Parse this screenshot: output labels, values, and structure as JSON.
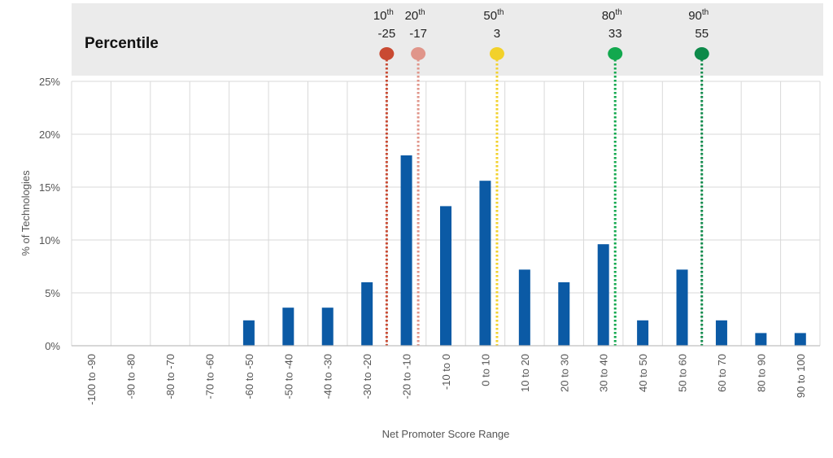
{
  "chart_data": {
    "type": "bar",
    "xlabel": "Net Promoter Score Range",
    "ylabel": "% of Technologies",
    "ylim": [
      0,
      25
    ],
    "yticks": [
      0,
      5,
      10,
      15,
      20,
      25
    ],
    "ytick_labels": [
      "0%",
      "5%",
      "10%",
      "15%",
      "20%",
      "25%"
    ],
    "grid": true,
    "bar_color": "#0b5aa5",
    "categories": [
      "-100 to -90",
      "-90 to -80",
      "-80 to -70",
      "-70 to -60",
      "-60 to -50",
      "-50 to -40",
      "-40 to -30",
      "-30 to -20",
      "-20 to -10",
      "-10 to 0",
      "0 to 10",
      "10 to 20",
      "20 to 30",
      "30 to 40",
      "40 to 50",
      "50 to 60",
      "60 to 70",
      "80 to 90",
      "90 to 100"
    ],
    "values": [
      0,
      0,
      0,
      0,
      2.4,
      3.6,
      3.6,
      6.0,
      18.0,
      13.2,
      15.6,
      7.2,
      6.0,
      9.6,
      2.4,
      7.2,
      2.4,
      1.2,
      1.2
    ],
    "percentile_panel": {
      "title": "Percentile",
      "background": "#ebebeb",
      "markers": [
        {
          "ordinal": "10",
          "suffix": "th",
          "value": "-25",
          "category_position": 7.5,
          "color": "#c94a32"
        },
        {
          "ordinal": "20",
          "suffix": "th",
          "value": "-17",
          "category_position": 8.3,
          "color": "#e0958a"
        },
        {
          "ordinal": "50",
          "suffix": "th",
          "value": "3",
          "category_position": 10.3,
          "color": "#f2d12a"
        },
        {
          "ordinal": "80",
          "suffix": "th",
          "value": "33",
          "category_position": 13.3,
          "color": "#12a84e"
        },
        {
          "ordinal": "90",
          "suffix": "th",
          "value": "55",
          "category_position": 15.5,
          "color": "#0d8a4a"
        }
      ]
    }
  }
}
